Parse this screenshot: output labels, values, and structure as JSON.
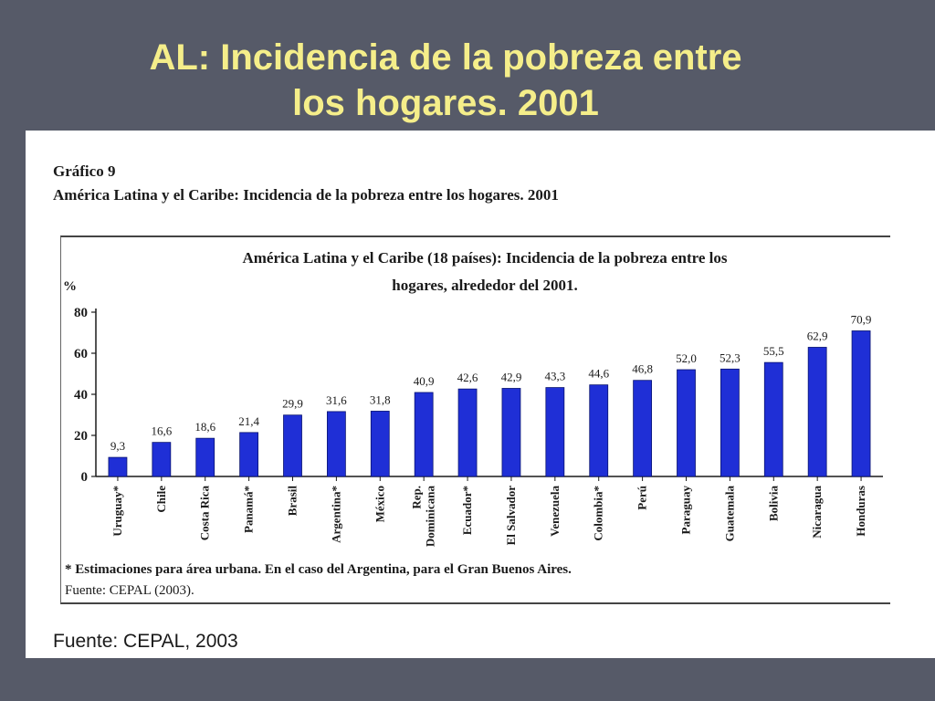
{
  "slide": {
    "title_line1": "AL:  Incidencia de la pobreza entre",
    "title_line2": "los hogares.  2001",
    "source": "Fuente: CEPAL, 2003"
  },
  "figure": {
    "number": "Gráfico 9",
    "caption": "América Latina y el Caribe: Incidencia de la pobreza entre los hogares. 2001",
    "note": "* Estimaciones para área urbana. En el caso del Argentina, para el Gran Buenos Aires.",
    "source": "Fuente: CEPAL (2003)."
  },
  "colors": {
    "bar": "#1f2fd6",
    "slide_background": "#565a68",
    "title": "#f5ee8a"
  },
  "chart_data": {
    "type": "bar",
    "title": "América Latina y el Caribe (18 países): Incidencia de la pobreza entre los hogares, alrededor del 2001.",
    "title_line1": "América Latina y el Caribe (18 países): Incidencia de la pobreza entre los",
    "title_line2": "hogares, alrededor del 2001.",
    "ylabel": "%",
    "ylim": [
      0,
      80
    ],
    "yticks": [
      0,
      20,
      40,
      60,
      80
    ],
    "grid": false,
    "categories": [
      "Uruguay*",
      "Chile",
      "Costa Rica",
      "Panamá*",
      "Brasil",
      "Argentina*",
      "México",
      "Rep. Dominicana",
      "Ecuador*",
      "El Salvador",
      "Venezuela",
      "Colombia*",
      "Perú",
      "Paraguay",
      "Guatemala",
      "Bolivia",
      "Nicaragua",
      "Honduras"
    ],
    "category_lines": [
      [
        "Uruguay*"
      ],
      [
        "Chile"
      ],
      [
        "Costa Rica"
      ],
      [
        "Panamá*"
      ],
      [
        "Brasil"
      ],
      [
        "Argentina*"
      ],
      [
        "México"
      ],
      [
        "Rep.",
        "Dominicana"
      ],
      [
        "Ecuador*"
      ],
      [
        "El Salvador"
      ],
      [
        "Venezuela"
      ],
      [
        "Colombia*"
      ],
      [
        "Perú"
      ],
      [
        "Paraguay"
      ],
      [
        "Guatemala"
      ],
      [
        "Bolivia"
      ],
      [
        "Nicaragua"
      ],
      [
        "Honduras"
      ]
    ],
    "values": [
      9.3,
      16.6,
      18.6,
      21.4,
      29.9,
      31.6,
      31.8,
      40.9,
      42.6,
      42.9,
      43.3,
      44.6,
      46.8,
      52.0,
      52.3,
      55.5,
      62.9,
      70.9
    ],
    "value_labels": [
      "9,3",
      "16,6",
      "18,6",
      "21,4",
      "29,9",
      "31,6",
      "31,8",
      "40,9",
      "42,6",
      "42,9",
      "43,3",
      "44,6",
      "46,8",
      "52,0",
      "52,3",
      "55,5",
      "62,9",
      "70,9"
    ]
  }
}
